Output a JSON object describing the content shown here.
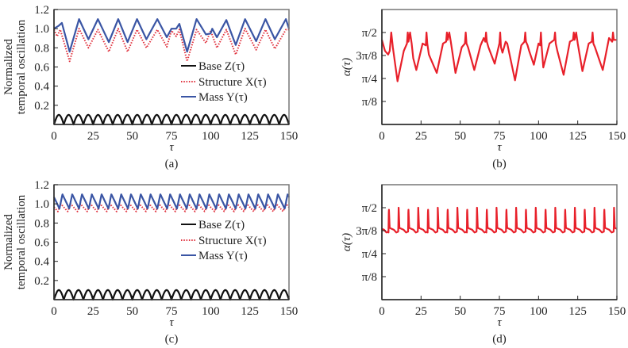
{
  "chart_data": [
    {
      "id": "a",
      "type": "line",
      "caption": "(a)",
      "xlabel": "τ",
      "ylabel": [
        "Normalized",
        "temporal oscillation"
      ],
      "xlim": [
        0,
        150
      ],
      "ylim": [
        0,
        1.2
      ],
      "xticks": [
        0,
        25,
        50,
        75,
        100,
        125,
        150
      ],
      "xtick_labels": [
        "0",
        "25",
        "50",
        "75",
        "100",
        "125",
        "150"
      ],
      "yticks": [
        0.2,
        0.4,
        0.6,
        0.8,
        1.0,
        1.2
      ],
      "ytick_labels": [
        "0.2",
        "0.4",
        "0.6",
        "0.8",
        "1.0",
        "1.2"
      ],
      "legend": {
        "placement": "center-right",
        "entries": [
          "Base Z(τ)",
          "Structure X(τ)",
          "Mass Y(τ)"
        ]
      },
      "series": [
        {
          "name": "Base Z(τ)",
          "color": "#111111",
          "style": "solid",
          "kind": "rectified_sine",
          "amplitude": 0.1,
          "period": 12.5,
          "offset": 0
        },
        {
          "name": "Structure X(τ)",
          "color": "#e0303c",
          "style": "dotted",
          "x": [
            0,
            2,
            4,
            10,
            16,
            22,
            28,
            35,
            41,
            47,
            53,
            59,
            66,
            72,
            75,
            78,
            80,
            85,
            91,
            97,
            100,
            104,
            110,
            116,
            122,
            129,
            135,
            141,
            148,
            150
          ],
          "y": [
            0.99,
            0.92,
            0.99,
            0.66,
            1.0,
            0.8,
            0.99,
            0.76,
            1.0,
            0.76,
            0.99,
            0.8,
            0.99,
            0.81,
            0.98,
            0.92,
            0.99,
            0.66,
            0.99,
            0.85,
            0.98,
            0.8,
            0.99,
            0.73,
            1.0,
            0.78,
            0.99,
            0.79,
            0.99,
            0.99
          ]
        },
        {
          "name": "Mass Y(τ)",
          "color": "#3a55a4",
          "style": "solid",
          "x": [
            0,
            3,
            5,
            10,
            16,
            22,
            28,
            35,
            41,
            47,
            53,
            59,
            66,
            72,
            75,
            78,
            80,
            85,
            91,
            97,
            100,
            101,
            104,
            110,
            116,
            122,
            129,
            135,
            141,
            148,
            150
          ],
          "y": [
            1.0,
            1.03,
            1.06,
            0.76,
            1.1,
            0.89,
            1.1,
            0.86,
            1.1,
            0.86,
            1.1,
            0.89,
            1.1,
            0.91,
            1.0,
            1.0,
            1.05,
            0.76,
            1.1,
            0.94,
            0.95,
            1.0,
            0.91,
            1.09,
            0.83,
            1.1,
            0.87,
            1.1,
            0.89,
            1.1,
            1.0
          ]
        }
      ]
    },
    {
      "id": "b",
      "type": "line",
      "caption": "(b)",
      "xlabel": "τ",
      "ylabel": "α(τ)",
      "xlim": [
        0,
        150
      ],
      "ylim_in_pi": [
        0,
        0.625
      ],
      "xticks": [
        0,
        25,
        50,
        75,
        100,
        125,
        150
      ],
      "xtick_labels": [
        "0",
        "25",
        "50",
        "75",
        "100",
        "125",
        "150"
      ],
      "yticks_in_pi": [
        0.125,
        0.25,
        0.375,
        0.5
      ],
      "ytick_labels": [
        "π/8",
        "π/4",
        "3π/8",
        "π/2"
      ],
      "series": [
        {
          "name": "α(τ)",
          "color": "#e8202a",
          "style": "solid",
          "units": "π",
          "x": [
            0,
            2,
            4,
            5,
            6,
            7,
            10,
            14,
            16,
            16.5,
            17,
            18,
            19,
            20,
            22,
            26,
            28,
            28.5,
            29,
            30,
            35,
            39,
            41,
            41.5,
            42,
            43,
            44,
            47,
            51,
            53,
            53.5,
            54,
            55,
            59,
            63,
            65,
            66,
            66.5,
            67,
            68,
            72,
            75,
            75.5,
            76,
            77,
            79,
            80,
            85,
            89,
            91,
            91.5,
            92,
            93,
            94,
            97,
            100,
            101,
            101.5,
            102,
            103,
            107,
            110,
            110.5,
            111,
            112,
            116,
            120,
            122,
            122.5,
            123,
            124,
            125,
            128,
            132,
            134,
            134.5,
            135,
            136,
            141,
            145,
            147,
            147.5,
            148,
            150
          ],
          "y": [
            0.46,
            0.4,
            0.38,
            0.4,
            0.5,
            0.42,
            0.235,
            0.4,
            0.44,
            0.5,
            0.45,
            0.5,
            0.44,
            0.36,
            0.296,
            0.44,
            0.43,
            0.5,
            0.44,
            0.38,
            0.28,
            0.44,
            0.45,
            0.5,
            0.46,
            0.5,
            0.45,
            0.28,
            0.42,
            0.44,
            0.5,
            0.44,
            0.42,
            0.296,
            0.43,
            0.47,
            0.45,
            0.5,
            0.45,
            0.42,
            0.33,
            0.44,
            0.5,
            0.42,
            0.39,
            0.45,
            0.44,
            0.24,
            0.43,
            0.45,
            0.5,
            0.45,
            0.43,
            0.4,
            0.325,
            0.44,
            0.43,
            0.5,
            0.42,
            0.31,
            0.44,
            0.46,
            0.5,
            0.44,
            0.4,
            0.27,
            0.45,
            0.46,
            0.5,
            0.46,
            0.5,
            0.44,
            0.29,
            0.44,
            0.45,
            0.5,
            0.44,
            0.42,
            0.296,
            0.47,
            0.45,
            0.5,
            0.46,
            0.46
          ]
        }
      ]
    },
    {
      "id": "c",
      "type": "line",
      "caption": "(c)",
      "xlabel": "τ",
      "ylabel": [
        "Normalized",
        "temporal oscillation"
      ],
      "xlim": [
        0,
        150
      ],
      "ylim": [
        0,
        1.2
      ],
      "xticks": [
        0,
        25,
        50,
        75,
        100,
        125,
        150
      ],
      "xtick_labels": [
        "0",
        "25",
        "50",
        "75",
        "100",
        "125",
        "150"
      ],
      "yticks": [
        0.2,
        0.4,
        0.6,
        0.8,
        1.0,
        1.2
      ],
      "ytick_labels": [
        "0.2",
        "0.4",
        "0.6",
        "0.8",
        "1.0",
        "1.2"
      ],
      "legend": {
        "placement": "center-right",
        "entries": [
          "Base Z(τ)",
          "Structure X(τ)",
          "Mass Y(τ)"
        ]
      },
      "series": [
        {
          "name": "Base Z(τ)",
          "color": "#111111",
          "style": "solid",
          "kind": "rectified_sine",
          "amplitude": 0.1,
          "period": 12.5,
          "offset": 0
        },
        {
          "name": "Structure X(τ)",
          "color": "#e0303c",
          "style": "dotted",
          "kind": "sawtooth",
          "min": 0.92,
          "max": 1.0,
          "period": 6.25,
          "phase": 2.5
        },
        {
          "name": "Mass Y(τ)",
          "color": "#3a55a4",
          "style": "solid",
          "kind": "sawtooth",
          "min": 0.95,
          "max": 1.1,
          "period": 6.25,
          "phase": 3.5
        }
      ]
    },
    {
      "id": "d",
      "type": "line",
      "caption": "(d)",
      "xlabel": "τ",
      "ylabel": "α(τ)",
      "xlim": [
        0,
        150
      ],
      "ylim_in_pi": [
        0,
        0.625
      ],
      "xticks": [
        0,
        25,
        50,
        75,
        100,
        125,
        150
      ],
      "xtick_labels": [
        "0",
        "25",
        "50",
        "75",
        "100",
        "125",
        "150"
      ],
      "yticks_in_pi": [
        0.125,
        0.25,
        0.375,
        0.5
      ],
      "ytick_labels": [
        "π/8",
        "π/4",
        "3π/8",
        "π/2"
      ],
      "series": [
        {
          "name": "α(τ)",
          "color": "#e8202a",
          "style": "solid",
          "units": "π",
          "kind": "spike_train",
          "base": 0.365,
          "plateau": 0.39,
          "peak": 0.5,
          "period": 6.25,
          "phase": 4.2
        }
      ]
    }
  ]
}
